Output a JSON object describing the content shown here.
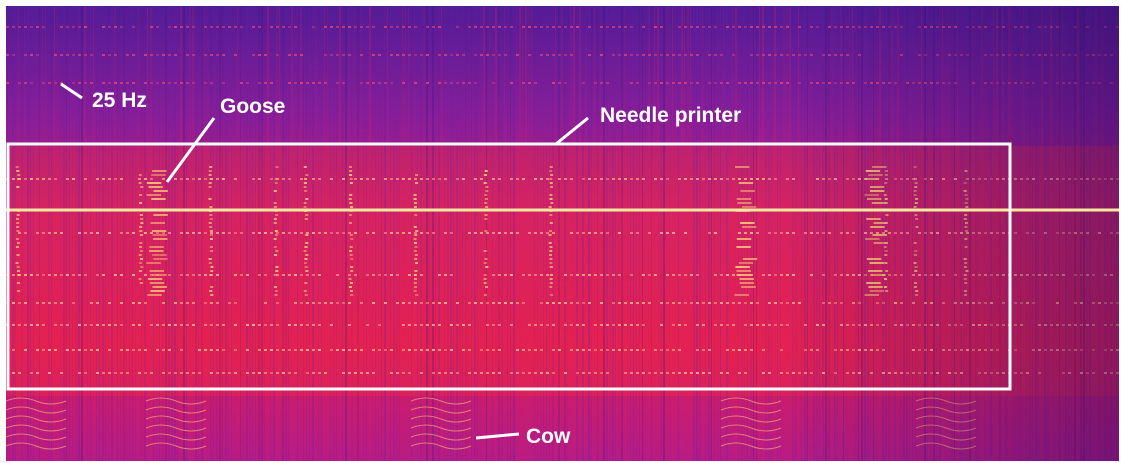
{
  "image": {
    "kind": "spectrogram",
    "colors": {
      "background_top": "#4a1a8c",
      "background_mid": "#b4207e",
      "background_bottom": "#d41a5a",
      "hot": "#ff3a2a",
      "line": "#ffe27a",
      "annotation": "#ffffff"
    },
    "labels": {
      "freq_marker": "25 Hz",
      "goose": "Goose",
      "needle_printer": "Needle printer",
      "cow": "Cow"
    }
  }
}
